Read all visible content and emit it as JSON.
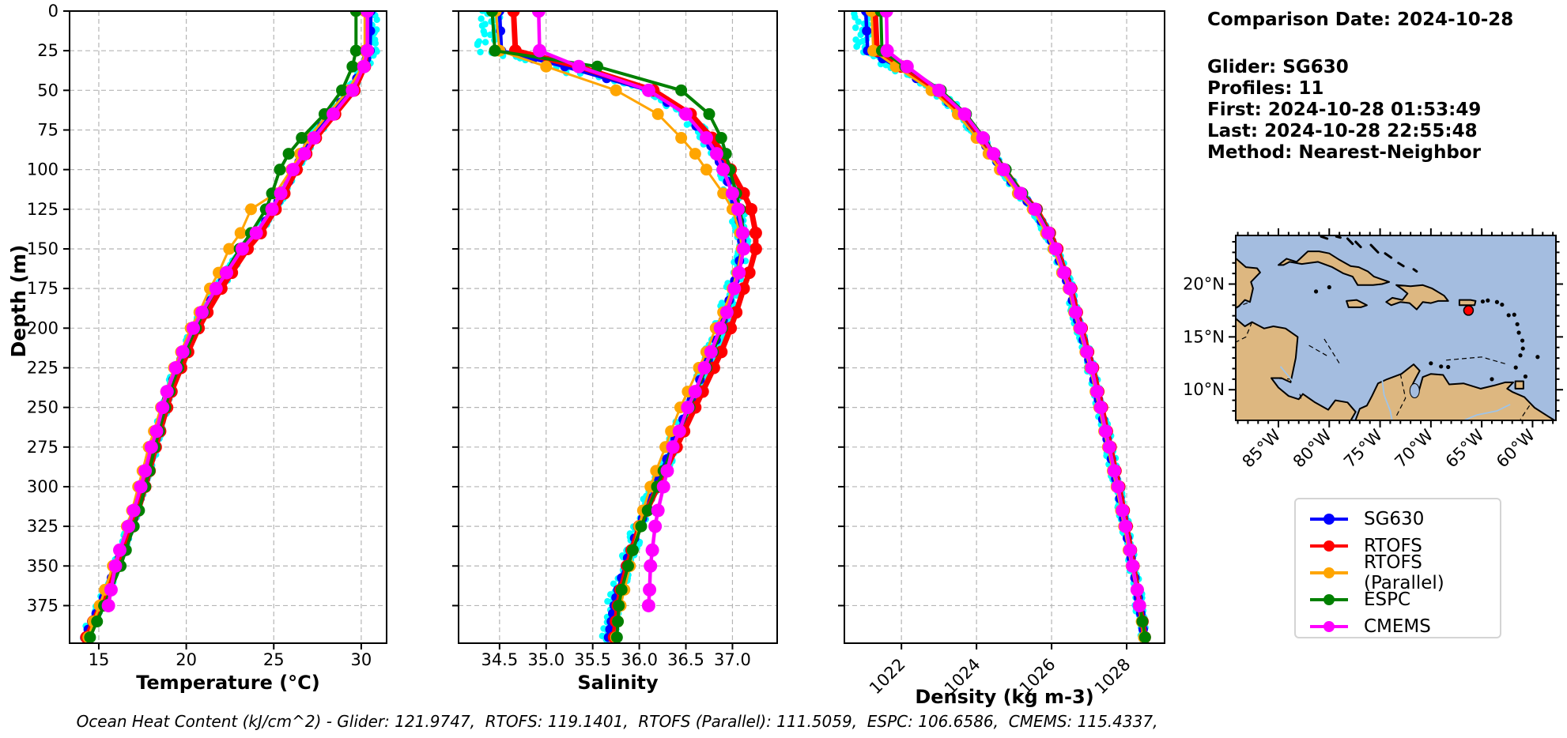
{
  "info": {
    "comparison_date": "Comparison Date: 2024-10-28",
    "glider": "Glider: SG630",
    "profiles": "Profiles: 11",
    "first": "First: 2024-10-28 01:53:49",
    "last": "Last: 2024-10-28 22:55:48",
    "method": "Method: Nearest-Neighbor"
  },
  "annotation": {
    "text": "Ocean Heat Content (kJ/cm^2) - Glider: 121.9747,  RTOFS: 119.1401,  RTOFS (Parallel): 111.5059,  ESPC: 106.6586,  CMEMS: 115.4337,"
  },
  "legend": {
    "items": [
      {
        "label": "SG630",
        "color": "#0000ff"
      },
      {
        "label": "RTOFS",
        "color": "#ff0000"
      },
      {
        "label": "RTOFS (Parallel)",
        "color": "#ffa500"
      },
      {
        "label": "ESPC",
        "color": "#008000"
      },
      {
        "label": "CMEMS",
        "color": "#ff00ff"
      }
    ]
  },
  "axes": {
    "depth_label": "Depth (m)",
    "temp_label": "Temperature (°C)",
    "sal_label": "Salinity",
    "dens_label": "Density (kg m-3)",
    "depth_ticks": [
      0,
      25,
      50,
      75,
      100,
      125,
      150,
      175,
      200,
      225,
      250,
      275,
      300,
      325,
      350,
      375
    ],
    "depth_max": 398.7
  },
  "chart_data": [
    {
      "id": "temperature",
      "type": "line",
      "xlabel": "Temperature (°C)",
      "ylabel": "Depth (m)",
      "xlim": [
        13.33,
        31.45
      ],
      "ylim": [
        398.7,
        0
      ],
      "xticks": [
        15,
        20,
        25,
        30
      ],
      "xtick_labels": [
        "15",
        "20",
        "25",
        "30"
      ],
      "rotate_xticks": false,
      "scatter_color": "#00ffff",
      "scatter_amp": 0.16,
      "scatter_surface_offset": 0.05,
      "depths": [
        0,
        25,
        35,
        50,
        65,
        80,
        90,
        100,
        115,
        125,
        140,
        150,
        165,
        175,
        190,
        200,
        215,
        225,
        240,
        250,
        265,
        275,
        290,
        300,
        315,
        325,
        340,
        350,
        365,
        375,
        385,
        395
      ],
      "series": [
        {
          "name": "SG630",
          "color": "#0000ff",
          "line_width": 4.5,
          "marker_radius": 6,
          "subdivide": 2,
          "values": [
            30.55,
            30.5,
            30.1,
            29.4,
            28.3,
            27.2,
            26.7,
            26.2,
            25.5,
            25.0,
            24.1,
            23.3,
            22.4,
            21.8,
            21.0,
            20.5,
            19.9,
            19.5,
            19.0,
            18.75,
            18.4,
            18.15,
            17.8,
            17.55,
            17.15,
            16.85,
            16.35,
            16.0,
            15.45,
            15.1,
            14.6,
            14.2
          ]
        },
        {
          "name": "RTOFS",
          "color": "#ff0000",
          "line_width": 7,
          "marker_radius": 8,
          "subdivide": 1,
          "values": [
            30.3,
            30.3,
            30.2,
            29.6,
            28.5,
            27.4,
            26.85,
            26.3,
            25.6,
            25.1,
            24.25,
            23.5,
            22.6,
            22.0,
            21.2,
            20.7,
            20.1,
            19.7,
            19.15,
            18.9,
            18.5,
            18.25,
            17.9,
            17.65,
            17.25,
            16.95,
            16.45,
            16.1,
            15.5,
            15.1,
            14.7,
            14.3
          ]
        },
        {
          "name": "RTOFS (Parallel)",
          "color": "#ffa500",
          "line_width": 3,
          "marker_radius": 7.5,
          "subdivide": 1,
          "values": [
            30.2,
            30.2,
            30.05,
            29.25,
            28.1,
            27.0,
            26.5,
            26.0,
            25.1,
            23.7,
            23.1,
            22.45,
            21.85,
            21.35,
            20.75,
            20.25,
            19.7,
            19.3,
            18.85,
            18.55,
            18.15,
            17.85,
            17.5,
            17.25,
            16.9,
            16.6,
            16.2,
            15.8,
            15.35,
            15.05,
            14.7,
            14.4
          ]
        },
        {
          "name": "ESPC",
          "color": "#008000",
          "line_width": 4,
          "marker_radius": 7.5,
          "subdivide": 1,
          "values": [
            29.7,
            29.7,
            29.5,
            28.9,
            27.9,
            26.6,
            25.85,
            25.35,
            24.9,
            24.55,
            23.7,
            23.05,
            22.25,
            21.7,
            21.0,
            20.55,
            19.95,
            19.55,
            19.05,
            18.8,
            18.45,
            18.2,
            17.9,
            17.65,
            17.3,
            17.0,
            16.55,
            16.25,
            15.7,
            15.3,
            14.9,
            14.5
          ]
        },
        {
          "name": "CMEMS",
          "color": "#ff00ff",
          "line_width": 4.5,
          "marker_radius": 8.5,
          "subdivide": 1,
          "values": [
            30.35,
            30.35,
            30.15,
            29.5,
            28.4,
            27.3,
            26.75,
            26.1,
            25.4,
            24.9,
            24.0,
            23.2,
            22.3,
            21.7,
            20.9,
            20.4,
            19.8,
            19.4,
            18.9,
            18.65,
            18.3,
            18.0,
            17.65,
            17.4,
            17.0,
            16.7,
            16.2,
            15.95,
            15.7,
            15.55,
            null,
            null
          ]
        }
      ]
    },
    {
      "id": "salinity",
      "type": "line",
      "xlabel": "Salinity",
      "ylabel": "Depth (m)",
      "xlim": [
        34.06,
        37.48
      ],
      "ylim": [
        398.7,
        0
      ],
      "xticks": [
        34.5,
        35.0,
        35.5,
        36.0,
        36.5,
        37.0
      ],
      "xtick_labels": [
        "34.5",
        "35.0",
        "35.5",
        "36.0",
        "36.5",
        "37.0"
      ],
      "rotate_xticks": false,
      "scatter_color": "#00ffff",
      "scatter_amp": 0.06,
      "scatter_surface_offset": -0.13,
      "depths": [
        0,
        25,
        35,
        50,
        65,
        80,
        90,
        100,
        115,
        125,
        140,
        150,
        165,
        175,
        190,
        200,
        215,
        225,
        240,
        250,
        265,
        275,
        290,
        300,
        315,
        325,
        340,
        350,
        365,
        375,
        385,
        395
      ],
      "series": [
        {
          "name": "SG630",
          "color": "#0000ff",
          "line_width": 4.5,
          "marker_radius": 6,
          "subdivide": 2,
          "values": [
            34.5,
            34.52,
            35.2,
            36.1,
            36.5,
            36.72,
            36.82,
            36.9,
            37.0,
            37.05,
            37.1,
            37.1,
            37.05,
            37.0,
            36.93,
            36.87,
            36.78,
            36.7,
            36.6,
            36.52,
            36.42,
            36.35,
            36.24,
            36.17,
            36.07,
            36.0,
            35.9,
            35.85,
            35.77,
            35.73,
            35.7,
            35.67
          ]
        },
        {
          "name": "RTOFS",
          "color": "#ff0000",
          "line_width": 7,
          "marker_radius": 8,
          "subdivide": 1,
          "values": [
            34.65,
            34.67,
            35.35,
            36.15,
            36.55,
            36.78,
            36.9,
            36.98,
            37.12,
            37.2,
            37.25,
            37.25,
            37.18,
            37.12,
            37.04,
            36.98,
            36.88,
            36.8,
            36.68,
            36.6,
            36.48,
            36.4,
            36.28,
            36.2,
            36.08,
            36.0,
            35.92,
            35.87,
            35.8,
            35.77,
            35.75,
            35.73
          ]
        },
        {
          "name": "RTOFS (Parallel)",
          "color": "#ffa500",
          "line_width": 3,
          "marker_radius": 7.5,
          "subdivide": 1,
          "values": [
            34.46,
            34.5,
            35.0,
            35.75,
            36.2,
            36.45,
            36.6,
            36.72,
            36.9,
            37.0,
            37.08,
            37.1,
            37.05,
            37.0,
            36.9,
            36.82,
            36.72,
            36.64,
            36.52,
            36.44,
            36.34,
            36.28,
            36.18,
            36.12,
            36.04,
            36.0,
            35.93,
            35.9,
            35.84,
            35.8,
            35.77,
            35.75
          ]
        },
        {
          "name": "ESPC",
          "color": "#008000",
          "line_width": 4,
          "marker_radius": 7.5,
          "subdivide": 1,
          "values": [
            34.42,
            34.45,
            35.55,
            36.45,
            36.75,
            36.88,
            36.93,
            36.97,
            37.04,
            37.08,
            37.12,
            37.12,
            37.07,
            37.02,
            36.95,
            36.89,
            36.79,
            36.72,
            36.61,
            36.54,
            36.43,
            36.36,
            36.26,
            36.19,
            36.09,
            36.02,
            35.93,
            35.88,
            35.81,
            35.78,
            35.77,
            35.76
          ]
        },
        {
          "name": "CMEMS",
          "color": "#ff00ff",
          "line_width": 4.5,
          "marker_radius": 8.5,
          "subdivide": 1,
          "values": [
            34.92,
            34.93,
            35.35,
            36.1,
            36.5,
            36.72,
            36.83,
            36.9,
            37.0,
            37.06,
            37.11,
            37.12,
            37.07,
            37.02,
            36.94,
            36.87,
            36.77,
            36.7,
            36.6,
            36.52,
            36.43,
            36.36,
            36.3,
            36.26,
            36.2,
            36.17,
            36.14,
            36.12,
            36.11,
            36.1,
            null,
            null
          ]
        }
      ]
    },
    {
      "id": "density",
      "type": "line",
      "xlabel": "Density (kg m-3)",
      "ylabel": "Depth (m)",
      "xlim": [
        1020.48,
        1029.01
      ],
      "ylim": [
        398.7,
        0
      ],
      "xticks": [
        1022,
        1024,
        1026,
        1028
      ],
      "xtick_labels": [
        "1022",
        "1024",
        "1026",
        "1028"
      ],
      "rotate_xticks": true,
      "scatter_color": "#00ffff",
      "scatter_amp": 0.09,
      "scatter_surface_offset": -0.12,
      "depths": [
        0,
        25,
        35,
        50,
        65,
        80,
        90,
        100,
        115,
        125,
        140,
        150,
        165,
        175,
        190,
        200,
        215,
        225,
        240,
        250,
        265,
        275,
        290,
        300,
        315,
        325,
        340,
        350,
        365,
        375,
        385,
        395
      ],
      "series": [
        {
          "name": "SG630",
          "color": "#0000ff",
          "line_width": 4.5,
          "marker_radius": 6,
          "subdivide": 2,
          "values": [
            1021.05,
            1021.1,
            1021.9,
            1022.9,
            1023.6,
            1024.1,
            1024.4,
            1024.7,
            1025.15,
            1025.55,
            1025.9,
            1026.1,
            1026.32,
            1026.48,
            1026.63,
            1026.76,
            1026.93,
            1027.06,
            1027.2,
            1027.3,
            1027.43,
            1027.53,
            1027.66,
            1027.76,
            1027.88,
            1027.96,
            1028.08,
            1028.16,
            1028.28,
            1028.34,
            1028.41,
            1028.47
          ]
        },
        {
          "name": "RTOFS",
          "color": "#ff0000",
          "line_width": 7,
          "marker_radius": 8,
          "subdivide": 1,
          "values": [
            1021.3,
            1021.35,
            1022.0,
            1022.95,
            1023.65,
            1024.15,
            1024.45,
            1024.75,
            1025.2,
            1025.6,
            1025.95,
            1026.15,
            1026.36,
            1026.52,
            1026.67,
            1026.8,
            1026.97,
            1027.1,
            1027.24,
            1027.34,
            1027.47,
            1027.57,
            1027.7,
            1027.8,
            1027.92,
            1028.0,
            1028.11,
            1028.18,
            1028.29,
            1028.35,
            1028.42,
            1028.48
          ]
        },
        {
          "name": "RTOFS (Parallel)",
          "color": "#ffa500",
          "line_width": 3,
          "marker_radius": 7.5,
          "subdivide": 1,
          "values": [
            1021.2,
            1021.25,
            1021.85,
            1022.8,
            1023.5,
            1024.0,
            1024.32,
            1024.62,
            1025.1,
            1025.5,
            1025.85,
            1026.05,
            1026.28,
            1026.45,
            1026.6,
            1026.73,
            1026.9,
            1027.03,
            1027.17,
            1027.27,
            1027.4,
            1027.5,
            1027.63,
            1027.73,
            1027.85,
            1027.93,
            1028.05,
            1028.13,
            1028.26,
            1028.33,
            1028.4,
            1028.46
          ]
        },
        {
          "name": "ESPC",
          "color": "#008000",
          "line_width": 4,
          "marker_radius": 7.5,
          "subdivide": 1,
          "values": [
            1021.45,
            1021.48,
            1022.1,
            1023.05,
            1023.72,
            1024.2,
            1024.48,
            1024.78,
            1025.22,
            1025.6,
            1025.94,
            1026.13,
            1026.35,
            1026.5,
            1026.65,
            1026.78,
            1026.95,
            1027.08,
            1027.22,
            1027.32,
            1027.45,
            1027.55,
            1027.68,
            1027.78,
            1027.9,
            1027.98,
            1028.1,
            1028.17,
            1028.29,
            1028.35,
            1028.42,
            1028.49
          ]
        },
        {
          "name": "CMEMS",
          "color": "#ff00ff",
          "line_width": 4.5,
          "marker_radius": 8.5,
          "subdivide": 1,
          "values": [
            1021.6,
            1021.62,
            1022.15,
            1023.0,
            1023.68,
            1024.17,
            1024.45,
            1024.72,
            1025.17,
            1025.56,
            1025.91,
            1026.11,
            1026.33,
            1026.49,
            1026.64,
            1026.77,
            1026.94,
            1027.07,
            1027.21,
            1027.31,
            1027.44,
            1027.54,
            1027.67,
            1027.77,
            1027.89,
            1027.97,
            1028.09,
            1028.16,
            1028.28,
            1028.34,
            null,
            null
          ]
        }
      ]
    }
  ],
  "map": {
    "lon_range": [
      -89.2,
      -57.7
    ],
    "lat_range": [
      7.1,
      24.6
    ],
    "lon_ticks": [
      {
        "v": -85,
        "label": "85°W"
      },
      {
        "v": -80,
        "label": "80°W"
      },
      {
        "v": -75,
        "label": "75°W"
      },
      {
        "v": -70,
        "label": "70°W"
      },
      {
        "v": -65,
        "label": "65°W"
      },
      {
        "v": -60,
        "label": "60°W"
      }
    ],
    "lat_ticks": [
      {
        "v": 20,
        "label": "20°N"
      },
      {
        "v": 15,
        "label": "15°N"
      },
      {
        "v": 10,
        "label": "10°N"
      }
    ],
    "ocean_color": "#a4bde0",
    "land_color": "#ddb780",
    "marker": {
      "lon": -66.3,
      "lat": 17.5,
      "color": "#ff0000"
    }
  }
}
